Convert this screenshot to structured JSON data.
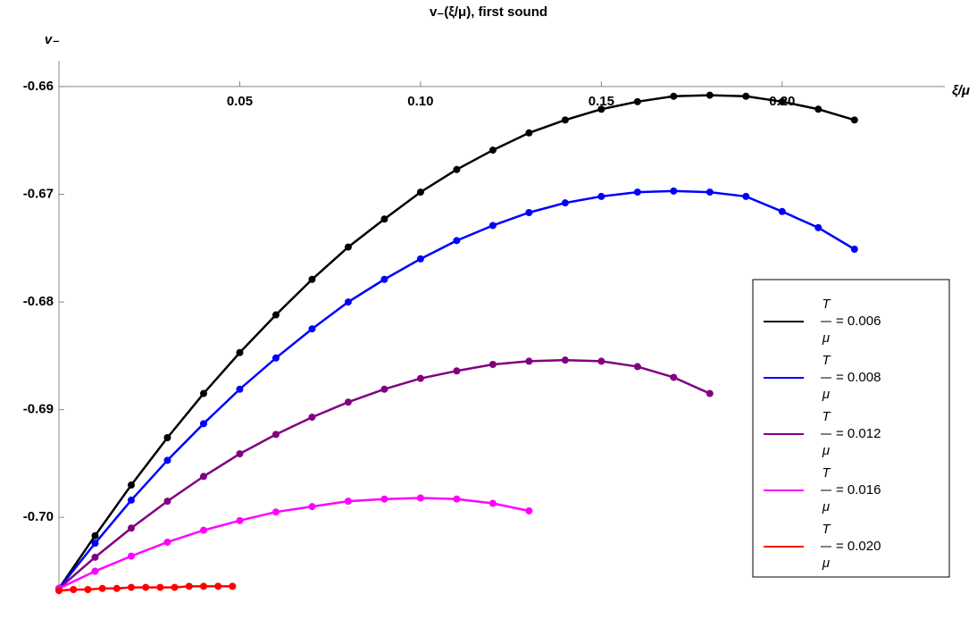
{
  "chart_data": {
    "type": "line",
    "title": "v₋(ξ/μ), first sound",
    "x_label": "ξ/μ",
    "y_label": "v₋",
    "xlim": [
      0,
      0.245
    ],
    "ylim": [
      -0.7067,
      -0.6576
    ],
    "xticks": [
      {
        "value": 0.05,
        "label": "0.05"
      },
      {
        "value": 0.1,
        "label": "0.10"
      },
      {
        "value": 0.15,
        "label": "0.15"
      },
      {
        "value": 0.2,
        "label": "0.20"
      }
    ],
    "yticks": [
      -0.66,
      -0.67,
      -0.68,
      -0.69,
      {
        "value": -0.7,
        "label": "-0.70"
      }
    ],
    "legend_fraction": {
      "numerator": "T",
      "denominator": "μ"
    },
    "series": [
      {
        "name": "= 0.006",
        "color": "#000000",
        "x": [
          0,
          0.01,
          0.02,
          0.03,
          0.04,
          0.05,
          0.06,
          0.07,
          0.08,
          0.09,
          0.1,
          0.11,
          0.12,
          0.13,
          0.14,
          0.15,
          0.16,
          0.17,
          0.18,
          0.19,
          0.2,
          0.21,
          0.22
        ],
        "values": [
          -0.7066,
          -0.7017,
          -0.697,
          -0.6926,
          -0.6885,
          -0.6847,
          -0.6812,
          -0.6779,
          -0.6749,
          -0.6723,
          -0.6698,
          -0.6677,
          -0.6659,
          -0.6643,
          -0.6631,
          -0.6621,
          -0.6614,
          -0.6609,
          -0.6608,
          -0.6609,
          -0.6614,
          -0.6621,
          -0.6631
        ]
      },
      {
        "name": "= 0.008",
        "color": "#0000ff",
        "x": [
          0,
          0.01,
          0.02,
          0.03,
          0.04,
          0.05,
          0.06,
          0.07,
          0.08,
          0.09,
          0.1,
          0.11,
          0.12,
          0.13,
          0.14,
          0.15,
          0.16,
          0.17,
          0.18,
          0.19,
          0.2,
          0.21,
          0.22
        ],
        "values": [
          -0.7066,
          -0.7024,
          -0.6984,
          -0.6947,
          -0.6913,
          -0.6881,
          -0.6852,
          -0.6825,
          -0.68,
          -0.6779,
          -0.676,
          -0.6743,
          -0.6729,
          -0.6717,
          -0.6708,
          -0.6702,
          -0.6698,
          -0.6697,
          -0.6698,
          -0.6702,
          -0.6716,
          -0.6731,
          -0.6751
        ]
      },
      {
        "name": "= 0.012",
        "color": "#800080",
        "x": [
          0,
          0.01,
          0.02,
          0.03,
          0.04,
          0.05,
          0.06,
          0.07,
          0.08,
          0.09,
          0.1,
          0.11,
          0.12,
          0.13,
          0.14,
          0.15,
          0.16,
          0.17,
          0.18
        ],
        "values": [
          -0.7066,
          -0.7037,
          -0.701,
          -0.6985,
          -0.6962,
          -0.6941,
          -0.6923,
          -0.6907,
          -0.6893,
          -0.6881,
          -0.6871,
          -0.6864,
          -0.6858,
          -0.6855,
          -0.6854,
          -0.6855,
          -0.686,
          -0.687,
          -0.6885
        ]
      },
      {
        "name": "= 0.016",
        "color": "#ff00ff",
        "x": [
          0,
          0.01,
          0.02,
          0.03,
          0.04,
          0.05,
          0.06,
          0.07,
          0.08,
          0.09,
          0.1,
          0.11,
          0.12,
          0.13
        ],
        "values": [
          -0.7066,
          -0.705,
          -0.7036,
          -0.7023,
          -0.7012,
          -0.7003,
          -0.6995,
          -0.699,
          -0.6985,
          -0.6983,
          -0.6982,
          -0.6983,
          -0.6987,
          -0.6994
        ]
      },
      {
        "name": "= 0.020",
        "color": "#ff0000",
        "x": [
          0,
          0.004,
          0.008,
          0.012,
          0.016,
          0.02,
          0.024,
          0.028,
          0.032,
          0.036,
          0.04,
          0.044,
          0.048
        ],
        "values": [
          -0.7068,
          -0.7067,
          -0.7067,
          -0.7066,
          -0.7066,
          -0.7065,
          -0.7065,
          -0.7065,
          -0.7065,
          -0.7064,
          -0.7064,
          -0.7064,
          -0.7064
        ]
      }
    ]
  }
}
